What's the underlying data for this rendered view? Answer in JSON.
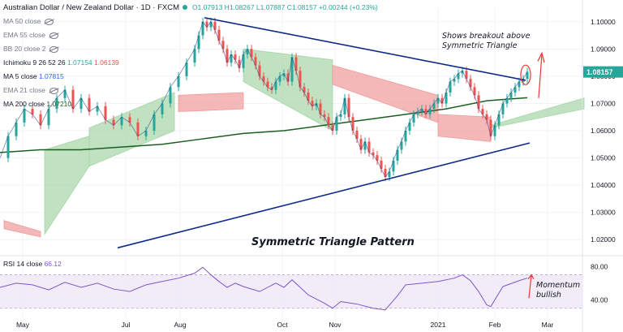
{
  "header": {
    "title": "Australian Dollar / New Zealand Dollar · 1D · FXCM",
    "ohlc": "O1.07913 H1.08267 L1.07887 C1.08157 +0.00244 (+0.23%)"
  },
  "indicators": {
    "ma50": "MA 50 close",
    "ema55": "EMA 55 close",
    "bb20": "BB 20 close 2",
    "ichimoku": {
      "label": "Ichimoku 9 26 52 26",
      "v1": "1.07154",
      "v2": "1.06139"
    },
    "ma5": {
      "label": "MA 5 close",
      "value": "1.07815"
    },
    "ema21": "EMA 21 close",
    "ma200": {
      "label": "MA 200 close",
      "value": "1.07210"
    }
  },
  "annotations": {
    "breakout_line1": "Shows breakout above",
    "breakout_line2": "Symmetric Triangle",
    "pattern": "Symmetric Triangle Pattern",
    "momentum_line1": "Momentum",
    "momentum_line2": "bullish"
  },
  "rsi": {
    "label": "RSI 14 close",
    "value": "66.12"
  },
  "colors": {
    "up": "#26a69a",
    "down": "#ef5350",
    "cloud_bull": "#a5d6a7",
    "cloud_bear": "#ef9a9a",
    "ma200": "#1b5e20",
    "ma5": "#1e3a8a",
    "triangle": "#0d2a8a",
    "rsi": "#7e57c2",
    "price_badge": "#26a69a"
  },
  "chart_data": [
    {
      "type": "candlestick",
      "title": "Australian Dollar / New Zealand Dollar · 1D · FXCM",
      "x_labels": [
        "May",
        "Jul",
        "Aug",
        "Oct",
        "Nov",
        "2021",
        "Feb",
        "Mar"
      ],
      "y_ticks": [
        "1.10000",
        "1.09000",
        "1.08000",
        "1.07000",
        "1.06000",
        "1.05000",
        "1.04000",
        "1.03000",
        "1.02000"
      ],
      "ylim": [
        1.015,
        1.105
      ],
      "last_price": "1.08157",
      "close_path": [
        [
          0,
          1.05
        ],
        [
          10,
          1.058
        ],
        [
          20,
          1.063
        ],
        [
          30,
          1.068
        ],
        [
          40,
          1.066
        ],
        [
          50,
          1.062
        ],
        [
          60,
          1.068
        ],
        [
          70,
          1.072
        ],
        [
          80,
          1.075
        ],
        [
          90,
          1.068
        ],
        [
          100,
          1.072
        ],
        [
          110,
          1.067
        ],
        [
          120,
          1.069
        ],
        [
          130,
          1.064
        ],
        [
          140,
          1.062
        ],
        [
          150,
          1.065
        ],
        [
          160,
          1.063
        ],
        [
          170,
          1.058
        ],
        [
          180,
          1.06
        ],
        [
          190,
          1.066
        ],
        [
          200,
          1.07
        ],
        [
          210,
          1.076
        ],
        [
          220,
          1.08
        ],
        [
          230,
          1.085
        ],
        [
          240,
          1.09
        ],
        [
          245,
          1.095
        ],
        [
          250,
          1.1
        ],
        [
          255,
          1.098
        ],
        [
          260,
          1.1
        ],
        [
          265,
          1.097
        ],
        [
          270,
          1.093
        ],
        [
          275,
          1.09
        ],
        [
          280,
          1.085
        ],
        [
          285,
          1.088
        ],
        [
          290,
          1.086
        ],
        [
          295,
          1.083
        ],
        [
          300,
          1.088
        ],
        [
          305,
          1.09
        ],
        [
          310,
          1.087
        ],
        [
          315,
          1.084
        ],
        [
          320,
          1.08
        ],
        [
          325,
          1.078
        ],
        [
          330,
          1.076
        ],
        [
          335,
          1.075
        ],
        [
          340,
          1.078
        ],
        [
          345,
          1.08
        ],
        [
          350,
          1.081
        ],
        [
          355,
          1.078
        ],
        [
          360,
          1.087
        ],
        [
          365,
          1.082
        ],
        [
          370,
          1.076
        ],
        [
          375,
          1.074
        ],
        [
          380,
          1.071
        ],
        [
          385,
          1.069
        ],
        [
          390,
          1.07
        ],
        [
          395,
          1.066
        ],
        [
          400,
          1.065
        ],
        [
          405,
          1.062
        ],
        [
          410,
          1.06
        ],
        [
          415,
          1.065
        ],
        [
          420,
          1.066
        ],
        [
          425,
          1.072
        ],
        [
          430,
          1.065
        ],
        [
          435,
          1.06
        ],
        [
          440,
          1.057
        ],
        [
          445,
          1.053
        ],
        [
          450,
          1.056
        ],
        [
          455,
          1.052
        ],
        [
          460,
          1.051
        ],
        [
          465,
          1.049
        ],
        [
          470,
          1.046
        ],
        [
          475,
          1.043
        ],
        [
          480,
          1.045
        ],
        [
          485,
          1.049
        ],
        [
          490,
          1.053
        ],
        [
          495,
          1.056
        ],
        [
          500,
          1.06
        ],
        [
          505,
          1.063
        ],
        [
          510,
          1.066
        ],
        [
          515,
          1.067
        ],
        [
          520,
          1.068
        ],
        [
          525,
          1.066
        ],
        [
          530,
          1.068
        ],
        [
          535,
          1.07
        ],
        [
          540,
          1.072
        ],
        [
          545,
          1.07
        ],
        [
          550,
          1.074
        ],
        [
          555,
          1.078
        ],
        [
          560,
          1.079
        ],
        [
          565,
          1.081
        ],
        [
          570,
          1.082
        ],
        [
          575,
          1.079
        ],
        [
          580,
          1.076
        ],
        [
          585,
          1.073
        ],
        [
          590,
          1.068
        ],
        [
          595,
          1.066
        ],
        [
          600,
          1.064
        ],
        [
          605,
          1.058
        ],
        [
          610,
          1.062
        ],
        [
          615,
          1.066
        ],
        [
          620,
          1.07
        ],
        [
          625,
          1.072
        ],
        [
          630,
          1.074
        ],
        [
          635,
          1.076
        ],
        [
          640,
          1.078
        ],
        [
          645,
          1.079
        ],
        [
          650,
          1.0816
        ]
      ],
      "ma200_path": [
        [
          0,
          1.052
        ],
        [
          50,
          1.053
        ],
        [
          100,
          1.053
        ],
        [
          150,
          1.054
        ],
        [
          200,
          1.055
        ],
        [
          250,
          1.057
        ],
        [
          300,
          1.059
        ],
        [
          350,
          1.06
        ],
        [
          400,
          1.062
        ],
        [
          450,
          1.064
        ],
        [
          500,
          1.066
        ],
        [
          550,
          1.068
        ],
        [
          600,
          1.071
        ],
        [
          650,
          1.0721
        ]
      ],
      "triangle_upper": [
        [
          252,
          1.1015
        ],
        [
          648,
          1.0785
        ]
      ],
      "triangle_lower": [
        [
          145,
          1.017
        ],
        [
          653,
          1.0555
        ]
      ],
      "cloud_segments": [
        {
          "kind": "bear",
          "x": [
            5,
            50
          ],
          "top": [
            1.027,
            1.023
          ],
          "bottom": [
            1.024,
            1.021
          ]
        },
        {
          "kind": "bull",
          "x": [
            55,
            110
          ],
          "top": [
            1.053,
            1.058
          ],
          "bottom": [
            1.022,
            1.047
          ]
        },
        {
          "kind": "bull",
          "x": [
            110,
            215
          ],
          "top": [
            1.061,
            1.074
          ],
          "bottom": [
            1.047,
            1.06
          ]
        },
        {
          "kind": "bear",
          "x": [
            220,
            300
          ],
          "top": [
            1.073,
            1.074
          ],
          "bottom": [
            1.067,
            1.068
          ]
        },
        {
          "kind": "bull",
          "x": [
            300,
            410
          ],
          "top": [
            1.09,
            1.086
          ],
          "bottom": [
            1.078,
            1.06
          ]
        },
        {
          "kind": "bear",
          "x": [
            410,
            540
          ],
          "top": [
            1.084,
            1.073
          ],
          "bottom": [
            1.077,
            1.063
          ]
        },
        {
          "kind": "bear",
          "x": [
            540,
            605
          ],
          "top": [
            1.066,
            1.065
          ],
          "bottom": [
            1.058,
            1.056
          ]
        },
        {
          "kind": "bull",
          "x": [
            605,
            720
          ],
          "top": [
            1.062,
            1.072
          ],
          "bottom": [
            1.061,
            1.068
          ]
        }
      ]
    },
    {
      "type": "line",
      "title": "RSI 14 close",
      "y_ticks": [
        "80.00",
        "40.00"
      ],
      "ylim": [
        20,
        90
      ],
      "band": [
        30,
        70
      ],
      "last": 66.12,
      "values_path": [
        [
          0,
          55
        ],
        [
          20,
          60
        ],
        [
          40,
          58
        ],
        [
          60,
          52
        ],
        [
          80,
          61
        ],
        [
          100,
          55
        ],
        [
          120,
          60
        ],
        [
          140,
          53
        ],
        [
          160,
          50
        ],
        [
          180,
          58
        ],
        [
          200,
          62
        ],
        [
          220,
          66
        ],
        [
          240,
          72
        ],
        [
          250,
          79
        ],
        [
          260,
          70
        ],
        [
          270,
          62
        ],
        [
          280,
          55
        ],
        [
          290,
          60
        ],
        [
          300,
          56
        ],
        [
          320,
          50
        ],
        [
          340,
          60
        ],
        [
          350,
          55
        ],
        [
          360,
          64
        ],
        [
          380,
          46
        ],
        [
          400,
          36
        ],
        [
          410,
          30
        ],
        [
          420,
          38
        ],
        [
          440,
          35
        ],
        [
          460,
          30
        ],
        [
          475,
          28
        ],
        [
          490,
          45
        ],
        [
          500,
          58
        ],
        [
          520,
          60
        ],
        [
          540,
          62
        ],
        [
          560,
          66
        ],
        [
          570,
          70
        ],
        [
          580,
          63
        ],
        [
          590,
          50
        ],
        [
          600,
          34
        ],
        [
          605,
          32
        ],
        [
          620,
          56
        ],
        [
          640,
          63
        ],
        [
          650,
          66.12
        ]
      ]
    }
  ]
}
